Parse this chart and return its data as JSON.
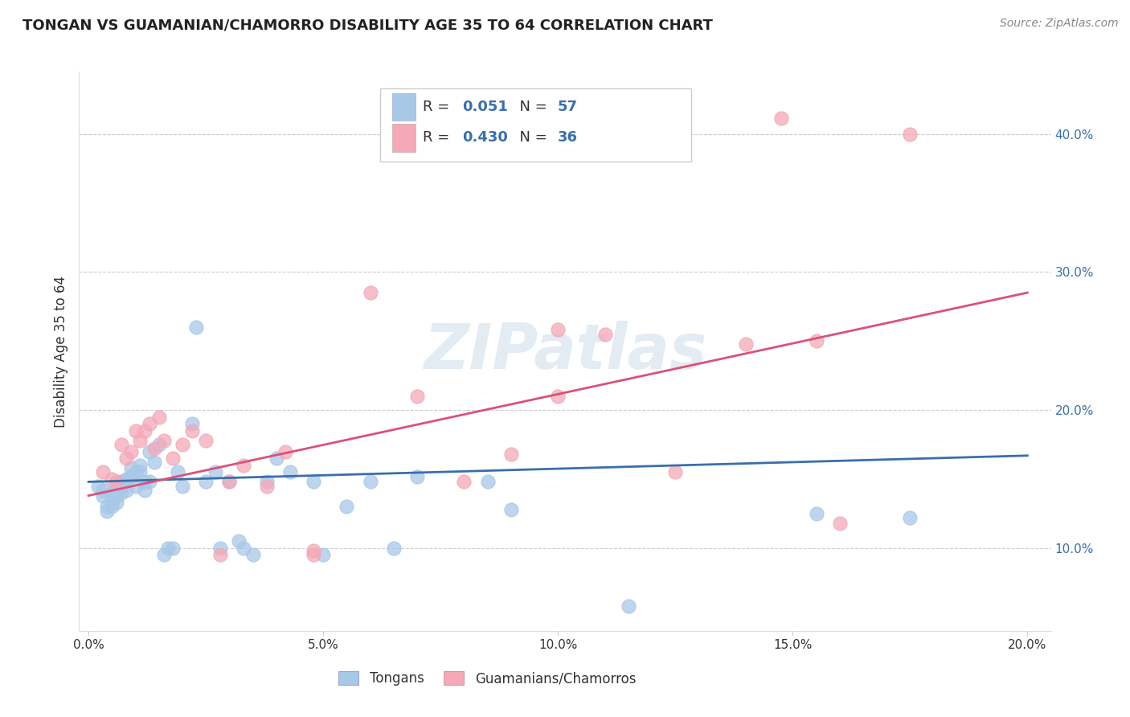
{
  "title": "TONGAN VS GUAMANIAN/CHAMORRO DISABILITY AGE 35 TO 64 CORRELATION CHART",
  "source": "Source: ZipAtlas.com",
  "ylabel": "Disability Age 35 to 64",
  "xlabel_ticks": [
    "0.0%",
    "5.0%",
    "10.0%",
    "15.0%",
    "20.0%"
  ],
  "xlabel_vals": [
    0.0,
    0.05,
    0.1,
    0.15,
    0.2
  ],
  "ylabel_ticks": [
    "10.0%",
    "20.0%",
    "30.0%",
    "40.0%"
  ],
  "ylabel_vals": [
    0.1,
    0.2,
    0.3,
    0.4
  ],
  "xlim": [
    -0.002,
    0.205
  ],
  "ylim": [
    0.04,
    0.445
  ],
  "blue_color": "#a8c8e8",
  "pink_color": "#f4a8b8",
  "blue_line_color": "#3a6faa",
  "pink_line_color": "#d9527a",
  "legend_R_blue": "0.051",
  "legend_N_blue": "57",
  "legend_R_pink": "0.430",
  "legend_N_pink": "36",
  "legend_label_blue": "Tongans",
  "legend_label_pink": "Guamanians/Chamorros",
  "watermark": "ZIPatlas",
  "blue_line_x0": 0.0,
  "blue_line_y0": 0.148,
  "blue_line_x1": 0.2,
  "blue_line_y1": 0.167,
  "pink_line_x0": 0.0,
  "pink_line_y0": 0.138,
  "pink_line_x1": 0.2,
  "pink_line_y1": 0.285,
  "blue_scatter_x": [
    0.002,
    0.003,
    0.003,
    0.004,
    0.004,
    0.005,
    0.005,
    0.005,
    0.006,
    0.006,
    0.006,
    0.007,
    0.007,
    0.007,
    0.008,
    0.008,
    0.008,
    0.009,
    0.009,
    0.01,
    0.01,
    0.011,
    0.011,
    0.012,
    0.012,
    0.013,
    0.013,
    0.014,
    0.015,
    0.016,
    0.017,
    0.018,
    0.019,
    0.02,
    0.022,
    0.023,
    0.025,
    0.027,
    0.028,
    0.03,
    0.032,
    0.033,
    0.035,
    0.038,
    0.04,
    0.043,
    0.048,
    0.05,
    0.055,
    0.06,
    0.065,
    0.07,
    0.085,
    0.09,
    0.155,
    0.175,
    0.115
  ],
  "blue_scatter_y": [
    0.145,
    0.142,
    0.138,
    0.13,
    0.127,
    0.14,
    0.135,
    0.13,
    0.142,
    0.138,
    0.133,
    0.148,
    0.145,
    0.14,
    0.15,
    0.148,
    0.142,
    0.158,
    0.152,
    0.155,
    0.145,
    0.16,
    0.155,
    0.148,
    0.142,
    0.17,
    0.148,
    0.162,
    0.175,
    0.095,
    0.1,
    0.1,
    0.155,
    0.145,
    0.19,
    0.26,
    0.148,
    0.155,
    0.1,
    0.148,
    0.105,
    0.1,
    0.095,
    0.148,
    0.165,
    0.155,
    0.148,
    0.095,
    0.13,
    0.148,
    0.1,
    0.152,
    0.148,
    0.128,
    0.125,
    0.122,
    0.058
  ],
  "pink_scatter_x": [
    0.003,
    0.005,
    0.006,
    0.007,
    0.008,
    0.009,
    0.01,
    0.011,
    0.012,
    0.013,
    0.014,
    0.015,
    0.016,
    0.018,
    0.02,
    0.022,
    0.025,
    0.028,
    0.03,
    0.033,
    0.038,
    0.042,
    0.048,
    0.06,
    0.07,
    0.08,
    0.09,
    0.1,
    0.11,
    0.125,
    0.14,
    0.155,
    0.16,
    0.175,
    0.1,
    0.048
  ],
  "pink_scatter_y": [
    0.155,
    0.15,
    0.148,
    0.175,
    0.165,
    0.17,
    0.185,
    0.178,
    0.185,
    0.19,
    0.172,
    0.195,
    0.178,
    0.165,
    0.175,
    0.185,
    0.178,
    0.095,
    0.148,
    0.16,
    0.145,
    0.17,
    0.095,
    0.285,
    0.21,
    0.148,
    0.168,
    0.21,
    0.255,
    0.155,
    0.248,
    0.25,
    0.118,
    0.4,
    0.258,
    0.098
  ]
}
